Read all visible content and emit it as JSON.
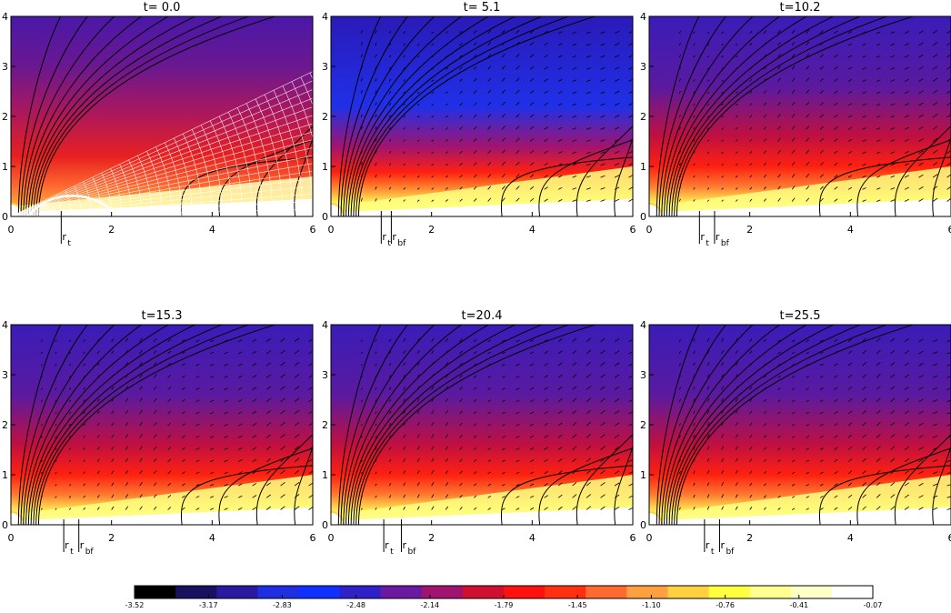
{
  "figure": {
    "type": "multi-panel simulation snapshot",
    "panel_titles": [
      "t=  0.0",
      "t=  5.1",
      "t=10.2",
      "t=15.3",
      "t=20.4",
      "t=25.5"
    ],
    "x_ticks": [
      "0",
      "2",
      "4",
      "6"
    ],
    "y_ticks": [
      "0",
      "1",
      "2",
      "3",
      "4"
    ],
    "marker_labels": {
      "rt_sub": "t",
      "rbf_sub": "bf",
      "r": "r"
    },
    "colorbar": {
      "tick_labels": [
        "-3.52",
        "-3.17",
        "-2.83",
        "-2.48",
        "-2.14",
        "-1.79",
        "-1.45",
        "-1.10",
        "-0.76",
        "-0.41",
        "-0.07"
      ],
      "colors": [
        "#000000",
        "#1a1060",
        "#2a1aa0",
        "#1f2ee0",
        "#1030ff",
        "#3020c8",
        "#6a1aa0",
        "#a01470",
        "#d01030",
        "#ff1010",
        "#ff3010",
        "#ff6a30",
        "#ffa040",
        "#ffd040",
        "#ffff40",
        "#ffff90",
        "#ffffc8",
        "#ffffff"
      ]
    }
  },
  "chart_data": [
    {
      "type": "heatmap",
      "title": "t=  0.0",
      "xlim": [
        0,
        6
      ],
      "ylim": [
        0,
        4
      ],
      "markers": [
        {
          "label": "r_t",
          "x": 1.0
        }
      ],
      "grid_overlay": true
    },
    {
      "type": "heatmap",
      "title": "t=  5.1",
      "xlim": [
        0,
        6
      ],
      "ylim": [
        0,
        4
      ],
      "markers": [
        {
          "label": "r_t",
          "x": 1.0
        },
        {
          "label": "r_bf",
          "x": 1.2
        }
      ]
    },
    {
      "type": "heatmap",
      "title": "t=10.2",
      "xlim": [
        0,
        6
      ],
      "ylim": [
        0,
        4
      ],
      "markers": [
        {
          "label": "r_t",
          "x": 1.0
        },
        {
          "label": "r_bf",
          "x": 1.3
        }
      ]
    },
    {
      "type": "heatmap",
      "title": "t=15.3",
      "xlim": [
        0,
        6
      ],
      "ylim": [
        0,
        4
      ],
      "markers": [
        {
          "label": "r_t",
          "x": 1.05
        },
        {
          "label": "r_bf",
          "x": 1.35
        }
      ]
    },
    {
      "type": "heatmap",
      "title": "t=20.4",
      "xlim": [
        0,
        6
      ],
      "ylim": [
        0,
        4
      ],
      "markers": [
        {
          "label": "r_t",
          "x": 1.05
        },
        {
          "label": "r_bf",
          "x": 1.4
        }
      ]
    },
    {
      "type": "heatmap",
      "title": "t=25.5",
      "xlim": [
        0,
        6
      ],
      "ylim": [
        0,
        4
      ],
      "markers": [
        {
          "label": "r_t",
          "x": 1.1
        },
        {
          "label": "r_bf",
          "x": 1.4
        }
      ]
    }
  ]
}
